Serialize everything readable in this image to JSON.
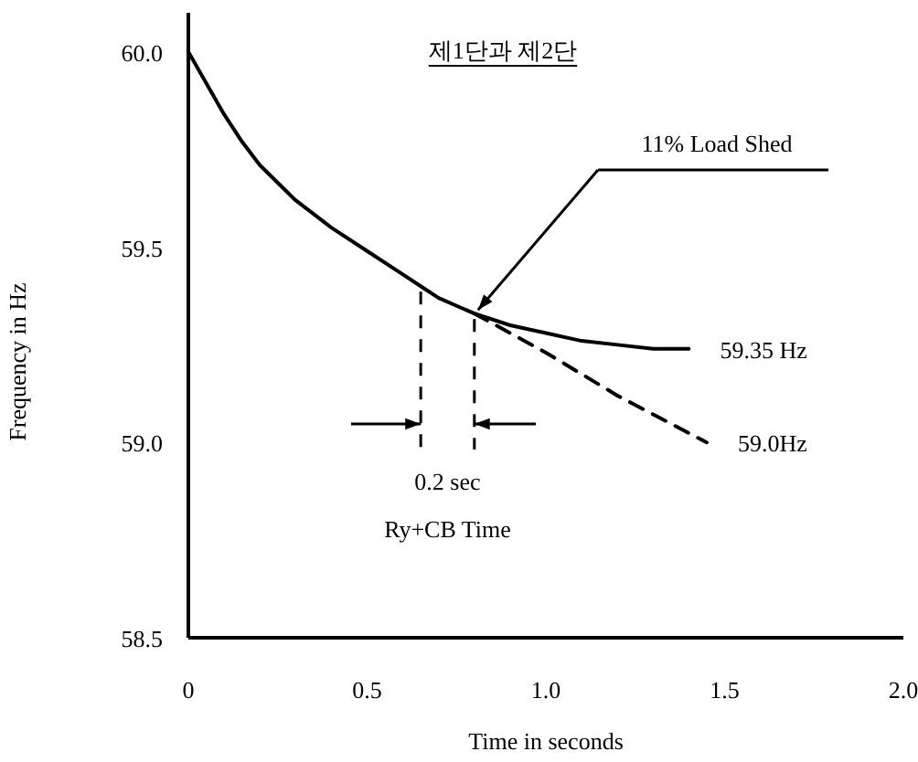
{
  "chart_data": {
    "type": "line",
    "title": "제1단과 제2단",
    "xlabel": "Time in seconds",
    "ylabel": "Frequency in Hz",
    "xlim": [
      0,
      2.0
    ],
    "ylim": [
      58.5,
      60.1
    ],
    "xticks": [
      0,
      {
        "value": 0.5,
        "label": "0.5"
      },
      {
        "value": 1.0,
        "label": "1.0"
      },
      {
        "value": 1.5,
        "label": "1.5"
      },
      {
        "value": 2.0,
        "label": "2.0"
      }
    ],
    "yticks": [
      {
        "value": 58.5,
        "label": "58.5"
      },
      {
        "value": 59.0,
        "label": "59.0"
      },
      {
        "value": 59.5,
        "label": "59.5"
      },
      {
        "value": 60.0,
        "label": "60.0"
      }
    ],
    "series": [
      {
        "color": "#000000",
        "line_style": "solid",
        "x": [
          0,
          0.05,
          0.1,
          0.15,
          0.2,
          0.3,
          0.4,
          0.5,
          0.6,
          0.65,
          0.7,
          0.8,
          0.9,
          1.0,
          1.1,
          1.2,
          1.3,
          1.4
        ],
        "values": [
          60.0,
          59.92,
          59.84,
          59.77,
          59.71,
          59.62,
          59.55,
          59.49,
          59.43,
          59.4,
          59.37,
          59.33,
          59.3,
          59.28,
          59.26,
          59.25,
          59.24,
          59.24
        ]
      },
      {
        "color": "#000000",
        "line_style": "dashed",
        "x": [
          0.8,
          1.0,
          1.2,
          1.45
        ],
        "values": [
          59.33,
          59.23,
          59.12,
          59.0
        ]
      }
    ],
    "annotations": [
      "11% Load Shed",
      {
        "text": "59.35 Hz",
        "x": 1.4,
        "y": 59.24
      },
      {
        "text": "59.0Hz",
        "x": 1.45,
        "y": 59.0
      },
      {
        "text": "0.2 sec",
        "x": 0.65,
        "y": 59.4
      },
      "Ry+CB Time"
    ],
    "grid": false
  }
}
